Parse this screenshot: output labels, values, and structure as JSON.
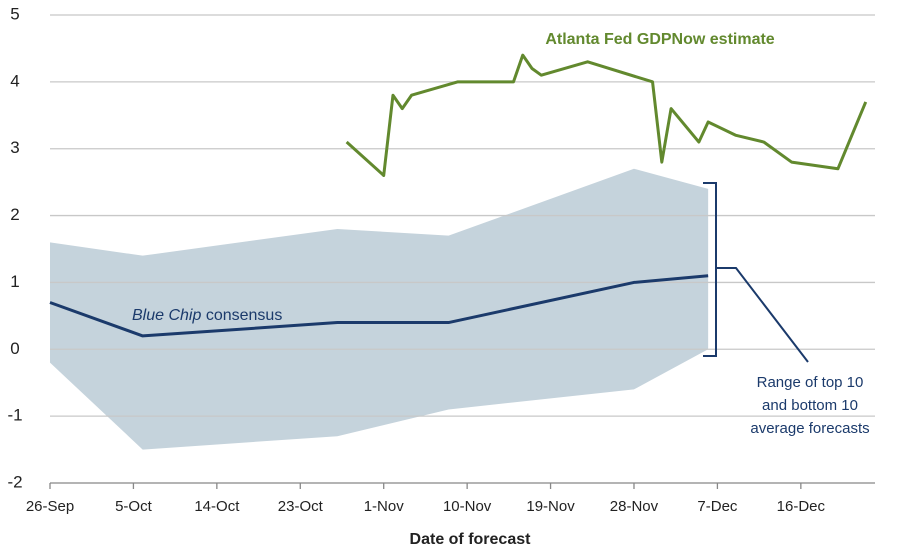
{
  "chart_data": {
    "type": "line",
    "x_axis_label": "Date of forecast",
    "xlim": [
      0,
      89
    ],
    "xticks": [
      {
        "value": 0,
        "label": "26-Sep"
      },
      {
        "value": 9,
        "label": "5-Oct"
      },
      {
        "value": 18,
        "label": "14-Oct"
      },
      {
        "value": 27,
        "label": "23-Oct"
      },
      {
        "value": 36,
        "label": "1-Nov"
      },
      {
        "value": 45,
        "label": "10-Nov"
      },
      {
        "value": 54,
        "label": "19-Nov"
      },
      {
        "value": 63,
        "label": "28-Nov"
      },
      {
        "value": 72,
        "label": "7-Dec"
      },
      {
        "value": 81,
        "label": "16-Dec"
      }
    ],
    "ylim": [
      -2,
      5
    ],
    "yticks": [
      -2,
      -1,
      0,
      1,
      2,
      3,
      4,
      5
    ],
    "grid": true,
    "series": [
      {
        "name": "Atlanta Fed GDPNow estimate",
        "color": "#62892e",
        "x": [
          32,
          36,
          37,
          38,
          39,
          44,
          50,
          51,
          52,
          53,
          58,
          65,
          66,
          67,
          70,
          71,
          74,
          77,
          80,
          85,
          88
        ],
        "values": [
          3.1,
          2.6,
          3.8,
          3.6,
          3.8,
          4.0,
          4.0,
          4.4,
          4.2,
          4.1,
          4.3,
          4.0,
          2.8,
          3.6,
          3.1,
          3.4,
          3.2,
          3.1,
          2.8,
          2.7,
          3.7
        ]
      },
      {
        "color": "#1b3a6b",
        "x": [
          0,
          10,
          31,
          43,
          63,
          71
        ],
        "values": [
          0.7,
          0.2,
          0.4,
          0.4,
          1.0,
          1.1
        ]
      }
    ],
    "band": {
      "color": "#c5d3dc",
      "x": [
        0,
        10,
        31,
        43,
        63,
        71
      ],
      "upper": [
        1.6,
        1.4,
        1.8,
        1.7,
        2.7,
        2.4
      ],
      "lower": [
        -0.2,
        -1.5,
        -1.3,
        -0.9,
        -0.6,
        0.0
      ]
    },
    "consensus_label": [
      {
        "text": "Blue Chip",
        "italic": true
      },
      {
        "text": "consensus",
        "italic": false
      }
    ],
    "range_label": [
      "Range of top 10",
      "and bottom 10",
      "average forecasts"
    ]
  }
}
